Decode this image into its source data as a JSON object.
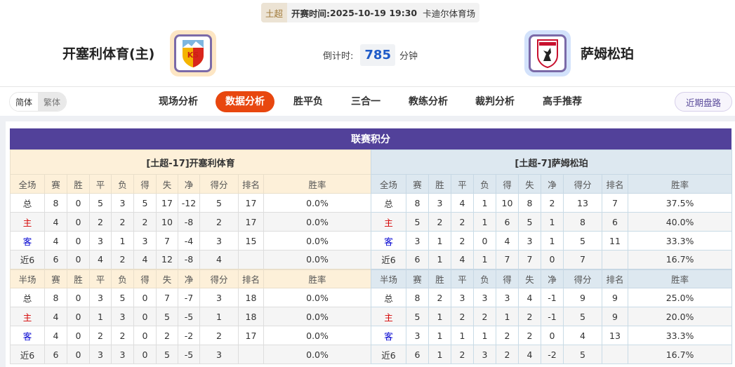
{
  "match": {
    "league": "土超",
    "time_label": "开赛时间:",
    "time": "2025-10-19 19:30",
    "venue": "卡迪尔体育场"
  },
  "home_team": {
    "name": "开塞利体育(主)",
    "logo_text": "KS"
  },
  "away_team": {
    "name": "萨姆松珀"
  },
  "countdown": {
    "label": "倒计时:",
    "value": "785",
    "unit": "分钟"
  },
  "lang": {
    "simplified": "简体",
    "traditional": "繁体"
  },
  "tabs": [
    {
      "label": "现场分析"
    },
    {
      "label": "数据分析"
    },
    {
      "label": "胜平负"
    },
    {
      "label": "三合一"
    },
    {
      "label": "教练分析"
    },
    {
      "label": "裁判分析"
    },
    {
      "label": "高手推荐"
    }
  ],
  "active_tab": "数据分析",
  "recent_button": "近期盘路",
  "section_title": "联赛积分",
  "colors": {
    "accent": "#e8470f",
    "header": "#52419a",
    "home": "#d40000",
    "away": "#0000d0"
  },
  "standings": [
    {
      "title": "[土超-17]开塞利体育",
      "full_headers": [
        "全场",
        "赛",
        "胜",
        "平",
        "负",
        "得",
        "失",
        "净",
        "得分",
        "排名",
        "胜率"
      ],
      "full_rows": [
        [
          "总",
          "8",
          "0",
          "5",
          "3",
          "5",
          "17",
          "-12",
          "5",
          "17",
          "0.0%"
        ],
        [
          "主",
          "4",
          "0",
          "2",
          "2",
          "2",
          "10",
          "-8",
          "2",
          "17",
          "0.0%"
        ],
        [
          "客",
          "4",
          "0",
          "3",
          "1",
          "3",
          "7",
          "-4",
          "3",
          "15",
          "0.0%"
        ],
        [
          "近6",
          "6",
          "0",
          "4",
          "2",
          "4",
          "12",
          "-8",
          "4",
          "",
          "0.0%"
        ]
      ],
      "half_headers": [
        "半场",
        "赛",
        "胜",
        "平",
        "负",
        "得",
        "失",
        "净",
        "得分",
        "排名",
        "胜率"
      ],
      "half_rows": [
        [
          "总",
          "8",
          "0",
          "3",
          "5",
          "0",
          "7",
          "-7",
          "3",
          "18",
          "0.0%"
        ],
        [
          "主",
          "4",
          "0",
          "1",
          "3",
          "0",
          "5",
          "-5",
          "1",
          "18",
          "0.0%"
        ],
        [
          "客",
          "4",
          "0",
          "2",
          "2",
          "0",
          "2",
          "-2",
          "2",
          "17",
          "0.0%"
        ],
        [
          "近6",
          "6",
          "0",
          "3",
          "3",
          "0",
          "5",
          "-5",
          "3",
          "",
          "0.0%"
        ]
      ]
    },
    {
      "title": "[土超-7]萨姆松珀",
      "full_headers": [
        "全场",
        "赛",
        "胜",
        "平",
        "负",
        "得",
        "失",
        "净",
        "得分",
        "排名",
        "胜率"
      ],
      "full_rows": [
        [
          "总",
          "8",
          "3",
          "4",
          "1",
          "10",
          "8",
          "2",
          "13",
          "7",
          "37.5%"
        ],
        [
          "主",
          "5",
          "2",
          "2",
          "1",
          "6",
          "5",
          "1",
          "8",
          "6",
          "40.0%"
        ],
        [
          "客",
          "3",
          "1",
          "2",
          "0",
          "4",
          "3",
          "1",
          "5",
          "11",
          "33.3%"
        ],
        [
          "近6",
          "6",
          "1",
          "4",
          "1",
          "7",
          "7",
          "0",
          "7",
          "",
          "16.7%"
        ]
      ],
      "half_headers": [
        "半场",
        "赛",
        "胜",
        "平",
        "负",
        "得",
        "失",
        "净",
        "得分",
        "排名",
        "胜率"
      ],
      "half_rows": [
        [
          "总",
          "8",
          "2",
          "3",
          "3",
          "3",
          "4",
          "-1",
          "9",
          "9",
          "25.0%"
        ],
        [
          "主",
          "5",
          "1",
          "2",
          "2",
          "1",
          "2",
          "-1",
          "5",
          "9",
          "20.0%"
        ],
        [
          "客",
          "3",
          "1",
          "1",
          "1",
          "2",
          "2",
          "0",
          "4",
          "13",
          "33.3%"
        ],
        [
          "近6",
          "6",
          "1",
          "2",
          "3",
          "2",
          "4",
          "-2",
          "5",
          "",
          "16.7%"
        ]
      ]
    }
  ]
}
